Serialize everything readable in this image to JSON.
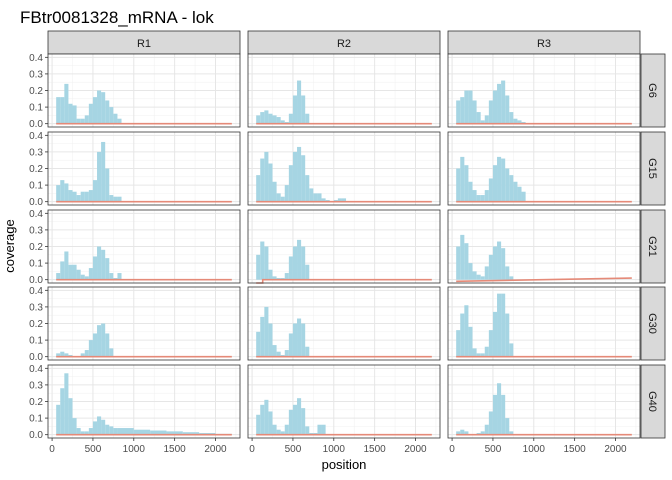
{
  "chart_data": {
    "type": "area",
    "title": "FBtr0081328_mRNA - lok",
    "xlabel": "position",
    "ylabel": "coverage",
    "columns": [
      "R1",
      "R2",
      "R3"
    ],
    "rows": [
      "G6",
      "G15",
      "G21",
      "G30",
      "G40"
    ],
    "xlim": [
      -50,
      2300
    ],
    "ylim": [
      -0.02,
      0.42
    ],
    "x_ticks": [
      0,
      500,
      1000,
      1500,
      2000
    ],
    "y_ticks": [
      0.0,
      0.1,
      0.2,
      0.3,
      0.4
    ],
    "grid": true,
    "colors": {
      "coverage": "#a6d5e3",
      "line": "#e58a78",
      "strip": "#d9d9d9"
    },
    "panels": [
      {
        "col": "R1",
        "row": "G6",
        "x": [
          50,
          100,
          150,
          200,
          250,
          300,
          350,
          400,
          450,
          500,
          550,
          600,
          650,
          700,
          750,
          800,
          850
        ],
        "y": [
          0.16,
          0.16,
          0.24,
          0.12,
          0.11,
          0.03,
          0.03,
          0.05,
          0.12,
          0.16,
          0.2,
          0.19,
          0.14,
          0.1,
          0.06,
          0.03,
          0.0
        ],
        "line": [
          [
            50,
            0
          ],
          [
            2200,
            0
          ]
        ]
      },
      {
        "col": "R2",
        "row": "G6",
        "x": [
          50,
          100,
          150,
          200,
          250,
          300,
          350,
          400,
          450,
          500,
          550,
          600,
          650,
          700
        ],
        "y": [
          0.05,
          0.07,
          0.08,
          0.06,
          0.05,
          0.04,
          0.02,
          0.01,
          0.06,
          0.17,
          0.26,
          0.17,
          0.06,
          0.0
        ],
        "line": [
          [
            50,
            0
          ],
          [
            2200,
            0
          ]
        ]
      },
      {
        "col": "R3",
        "row": "G6",
        "x": [
          50,
          100,
          150,
          200,
          250,
          300,
          350,
          400,
          450,
          500,
          550,
          600,
          650,
          700,
          750,
          800,
          850,
          900
        ],
        "y": [
          0.14,
          0.16,
          0.2,
          0.2,
          0.14,
          0.07,
          0.02,
          0.05,
          0.14,
          0.2,
          0.24,
          0.26,
          0.17,
          0.07,
          0.03,
          0.02,
          0.01,
          0.0
        ],
        "line": [
          [
            50,
            0
          ],
          [
            2200,
            0
          ]
        ]
      },
      {
        "col": "R1",
        "row": "G15",
        "x": [
          50,
          100,
          150,
          200,
          250,
          300,
          350,
          400,
          450,
          500,
          550,
          600,
          650,
          700,
          750,
          800,
          850
        ],
        "y": [
          0.1,
          0.13,
          0.11,
          0.07,
          0.06,
          0.04,
          0.06,
          0.06,
          0.07,
          0.13,
          0.3,
          0.36,
          0.2,
          0.04,
          0.03,
          0.03,
          0.0
        ],
        "line": [
          [
            50,
            0
          ],
          [
            2200,
            0
          ]
        ]
      },
      {
        "col": "R2",
        "row": "G15",
        "x": [
          50,
          100,
          150,
          200,
          250,
          300,
          350,
          400,
          450,
          500,
          550,
          600,
          650,
          700,
          750,
          800,
          850,
          900,
          950,
          1000,
          1050,
          1100,
          1150
        ],
        "y": [
          0.16,
          0.26,
          0.3,
          0.23,
          0.12,
          0.05,
          0.03,
          0.1,
          0.22,
          0.3,
          0.33,
          0.28,
          0.16,
          0.08,
          0.05,
          0.05,
          0.02,
          0.01,
          0.0,
          0.01,
          0.02,
          0.02,
          0.0
        ],
        "line": [
          [
            50,
            0
          ],
          [
            2200,
            0
          ]
        ]
      },
      {
        "col": "R3",
        "row": "G15",
        "x": [
          50,
          100,
          150,
          200,
          250,
          300,
          350,
          400,
          450,
          500,
          550,
          600,
          650,
          700,
          750,
          800,
          850,
          900
        ],
        "y": [
          0.2,
          0.27,
          0.22,
          0.12,
          0.07,
          0.04,
          0.04,
          0.07,
          0.14,
          0.22,
          0.27,
          0.26,
          0.2,
          0.16,
          0.12,
          0.09,
          0.06,
          0.0
        ],
        "line": [
          [
            50,
            0
          ],
          [
            2200,
            0
          ]
        ]
      },
      {
        "col": "R1",
        "row": "G21",
        "x": [
          50,
          100,
          150,
          200,
          250,
          300,
          350,
          400,
          450,
          500,
          550,
          600,
          650,
          700,
          750,
          800,
          850
        ],
        "y": [
          0.04,
          0.11,
          0.17,
          0.09,
          0.09,
          0.06,
          0.03,
          0.02,
          0.07,
          0.14,
          0.2,
          0.18,
          0.13,
          0.04,
          0.01,
          0.04,
          0.0
        ],
        "line": [
          [
            50,
            0
          ],
          [
            2200,
            0
          ]
        ]
      },
      {
        "col": "R2",
        "row": "G21",
        "x": [
          50,
          100,
          150,
          200,
          250,
          300,
          350,
          400,
          450,
          500,
          550,
          600,
          650,
          700
        ],
        "y": [
          0.15,
          0.23,
          0.2,
          0.06,
          0.02,
          0.01,
          0.01,
          0.04,
          0.14,
          0.2,
          0.24,
          0.2,
          0.09,
          0.0
        ],
        "line": [
          [
            50,
            -0.02
          ],
          [
            130,
            -0.02
          ],
          [
            130,
            0
          ],
          [
            2200,
            0
          ]
        ]
      },
      {
        "col": "R3",
        "row": "G21",
        "x": [
          50,
          100,
          150,
          200,
          250,
          300,
          350,
          400,
          450,
          500,
          550,
          600,
          650,
          700,
          750
        ],
        "y": [
          0.2,
          0.27,
          0.22,
          0.1,
          0.05,
          0.03,
          0.02,
          0.08,
          0.15,
          0.2,
          0.23,
          0.19,
          0.08,
          0.02,
          0.0
        ],
        "line": [
          [
            50,
            -0.01
          ],
          [
            2200,
            0.01
          ]
        ]
      },
      {
        "col": "R1",
        "row": "G30",
        "x": [
          50,
          100,
          150,
          200,
          250,
          300,
          350,
          400,
          450,
          500,
          550,
          600,
          650,
          700,
          750
        ],
        "y": [
          0.02,
          0.03,
          0.02,
          0.01,
          0.0,
          0.0,
          0.02,
          0.04,
          0.1,
          0.14,
          0.19,
          0.2,
          0.14,
          0.05,
          0.0
        ],
        "line": [
          [
            50,
            0
          ],
          [
            2200,
            0
          ]
        ]
      },
      {
        "col": "R2",
        "row": "G30",
        "x": [
          50,
          100,
          150,
          200,
          250,
          300,
          350,
          400,
          450,
          500,
          550,
          600,
          650,
          700
        ],
        "y": [
          0.15,
          0.24,
          0.3,
          0.2,
          0.07,
          0.03,
          0.01,
          0.04,
          0.14,
          0.2,
          0.23,
          0.2,
          0.06,
          0.0
        ],
        "line": [
          [
            50,
            0
          ],
          [
            2200,
            0
          ]
        ]
      },
      {
        "col": "R3",
        "row": "G30",
        "x": [
          50,
          100,
          150,
          200,
          250,
          300,
          350,
          400,
          450,
          500,
          550,
          600,
          650,
          700,
          750
        ],
        "y": [
          0.16,
          0.26,
          0.31,
          0.18,
          0.05,
          0.02,
          0.02,
          0.06,
          0.16,
          0.27,
          0.38,
          0.38,
          0.26,
          0.08,
          0.0
        ],
        "line": [
          [
            50,
            0
          ],
          [
            2200,
            0
          ]
        ]
      },
      {
        "col": "R1",
        "row": "G40",
        "x": [
          50,
          100,
          150,
          200,
          250,
          300,
          350,
          400,
          450,
          500,
          550,
          600,
          650,
          700,
          750,
          800,
          1000,
          1200,
          1400,
          1600,
          1800,
          2000,
          2200
        ],
        "y": [
          0.18,
          0.28,
          0.37,
          0.22,
          0.1,
          0.04,
          0.02,
          0.02,
          0.04,
          0.08,
          0.11,
          0.09,
          0.06,
          0.05,
          0.04,
          0.04,
          0.03,
          0.025,
          0.02,
          0.015,
          0.01,
          0.005,
          0.0
        ],
        "line": [
          [
            50,
            0
          ],
          [
            2200,
            0
          ]
        ]
      },
      {
        "col": "R2",
        "row": "G40",
        "x": [
          50,
          100,
          150,
          200,
          250,
          300,
          350,
          400,
          450,
          500,
          550,
          600,
          650,
          700,
          750,
          800,
          850,
          900,
          950
        ],
        "y": [
          0.12,
          0.18,
          0.21,
          0.14,
          0.06,
          0.03,
          0.02,
          0.06,
          0.15,
          0.18,
          0.22,
          0.16,
          0.05,
          0.01,
          0.01,
          0.06,
          0.06,
          0.0,
          0.0
        ],
        "line": [
          [
            50,
            0
          ],
          [
            2200,
            0
          ]
        ]
      },
      {
        "col": "R3",
        "row": "G40",
        "x": [
          50,
          100,
          150,
          200,
          250,
          300,
          350,
          400,
          450,
          500,
          550,
          600,
          650,
          700,
          750
        ],
        "y": [
          0.02,
          0.03,
          0.02,
          0.0,
          0.0,
          0.01,
          0.02,
          0.06,
          0.14,
          0.24,
          0.31,
          0.24,
          0.1,
          0.02,
          0.0
        ],
        "line": [
          [
            50,
            0
          ],
          [
            2200,
            0
          ]
        ]
      }
    ]
  }
}
